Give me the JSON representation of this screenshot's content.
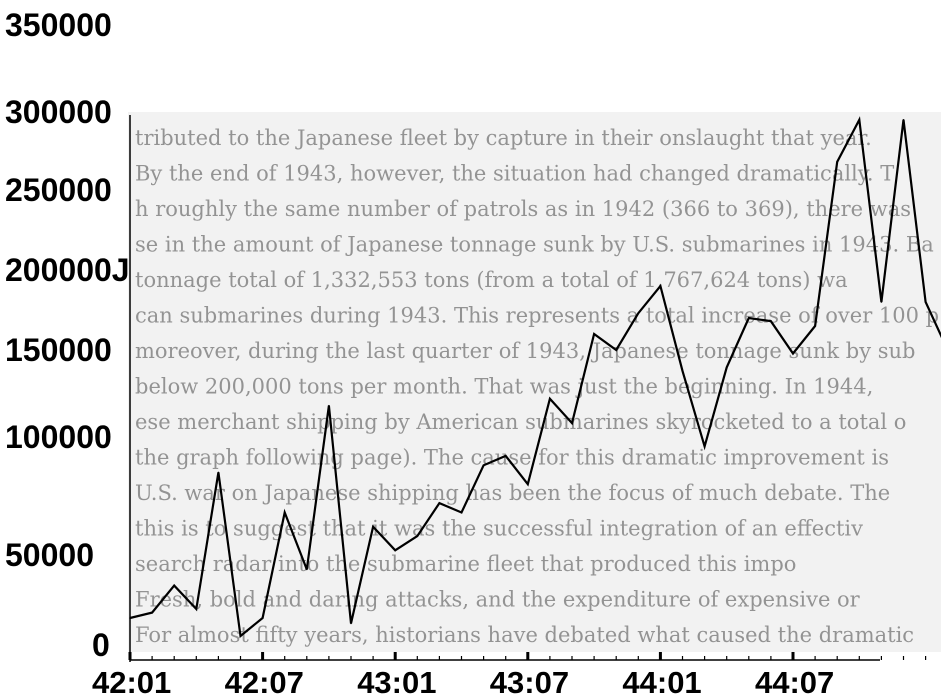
{
  "chart_data": {
    "type": "line",
    "xlabel": "",
    "ylabel": "",
    "ylim": [
      0,
      350000
    ],
    "grid": false,
    "legend": "none",
    "line_color": "#000000",
    "y_ticks": [
      {
        "value": 350000,
        "label": "350000"
      },
      {
        "value": 300000,
        "label": "300000"
      },
      {
        "value": 250000,
        "label": "250000"
      },
      {
        "value": 200000,
        "label": "200000J"
      },
      {
        "value": 150000,
        "label": "150000"
      },
      {
        "value": 100000,
        "label": "100000"
      },
      {
        "value": 50000,
        "label": "50000"
      },
      {
        "value": 0,
        "label": "0"
      }
    ],
    "x_ticks": [
      {
        "index": 0,
        "label": "42:01"
      },
      {
        "index": 6,
        "label": "42:07"
      },
      {
        "index": 12,
        "label": "43:01"
      },
      {
        "index": 18,
        "label": "43:07"
      },
      {
        "index": 24,
        "label": "44:01"
      },
      {
        "index": 30,
        "label": "44:07"
      }
    ],
    "x": [
      "42:01",
      "42:02",
      "42:03",
      "42:04",
      "42:05",
      "42:06",
      "42:07",
      "42:08",
      "42:09",
      "42:10",
      "42:11",
      "42:12",
      "43:01",
      "43:02",
      "43:03",
      "43:04",
      "43:05",
      "43:06",
      "43:07",
      "43:08",
      "43:09",
      "43:10",
      "43:11",
      "43:12",
      "44:01",
      "44:02",
      "44:03",
      "44:04",
      "44:05",
      "44:06",
      "44:07",
      "44:08",
      "44:09",
      "44:10",
      "44:11",
      "44:12",
      "45:01",
      "45:02"
    ],
    "values": [
      15000,
      18000,
      33000,
      20000,
      85000,
      5000,
      15000,
      68000,
      42000,
      118000,
      12000,
      62000,
      52000,
      58000,
      72000,
      68000,
      88000,
      92000,
      80000,
      122000,
      108000,
      160000,
      150000,
      173000,
      190000,
      138000,
      96000,
      140000,
      170000,
      168000,
      148000,
      165000,
      268000,
      295000,
      180000,
      295000,
      180000,
      150000
    ]
  },
  "background_scan": {
    "lines": [
      "tributed to the Japanese fleet by capture in their onslaught that year.",
      "By the end of 1943, however, the situation had changed dramatically. T",
      "h roughly the same number of patrols as in 1942 (366 to 369), there was",
      "se in the amount of Japanese tonnage sunk by U.S. submarines in 1943. Ba",
      "tonnage total of 1,332,553 tons (from a total of 1,767,624 tons) wa",
      "can submarines during 1943. This represents a total increase of over 100 p",
      "moreover, during the last quarter of 1943, Japanese tonnage sunk by sub",
      "below 200,000 tons per month. That was just the beginning. In 1944,",
      "ese merchant shipping by American submarines skyrocketed to a total o",
      "the graph following page). The cause for this dramatic improvement is",
      "U.S. war on Japanese shipping has been the focus of much debate. The",
      "this is to suggest that it was the successful integration of an effectiv",
      "search radar into the submarine fleet that produced this impo",
      "Fresh, bold and daring attacks, and the expenditure of expensive or",
      "For almost fifty years, historians have debated what caused the dramatic"
    ]
  }
}
